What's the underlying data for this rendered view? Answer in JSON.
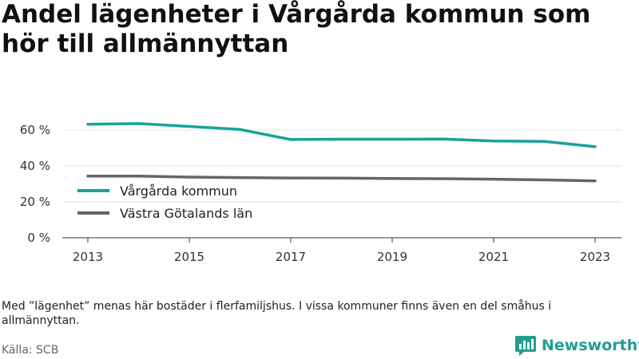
{
  "title": "Andel lägenheter i Vårgårda kommun som hör till allmännyttan",
  "note": "Med ”lägenhet” menas här bostäder i flerfamiljshus. I vissa kommuner finns även en del småhus i allmännyttan.",
  "source": "Källa: SCB",
  "brand": {
    "name": "Newsworthy",
    "icon": "bar-chart-logo-icon",
    "color": "#239c8f"
  },
  "chart_data": {
    "type": "line",
    "title": "Andel lägenheter i Vårgårda kommun som hör till allmännyttan",
    "xlabel": "",
    "ylabel": "",
    "x": [
      2013,
      2014,
      2015,
      2016,
      2017,
      2018,
      2019,
      2020,
      2021,
      2022,
      2023
    ],
    "xticks": [
      "2013",
      "2015",
      "2017",
      "2019",
      "2021",
      "2023"
    ],
    "yticks": [
      "0 %",
      "20 %",
      "40 %",
      "60 %"
    ],
    "ylim": [
      0,
      60
    ],
    "grid": "horizontal",
    "legend_position": "left",
    "series": [
      {
        "name": "Vårgårda kommun",
        "color": "#16a39a",
        "values": [
          63.2,
          63.6,
          62.0,
          60.3,
          54.7,
          54.9,
          54.9,
          55.0,
          53.9,
          53.7,
          50.7
        ]
      },
      {
        "name": "Västra Götalands län",
        "color": "#666666",
        "values": [
          34.3,
          34.3,
          33.8,
          33.5,
          33.3,
          33.2,
          33.0,
          32.9,
          32.6,
          32.2,
          31.7
        ]
      }
    ]
  }
}
